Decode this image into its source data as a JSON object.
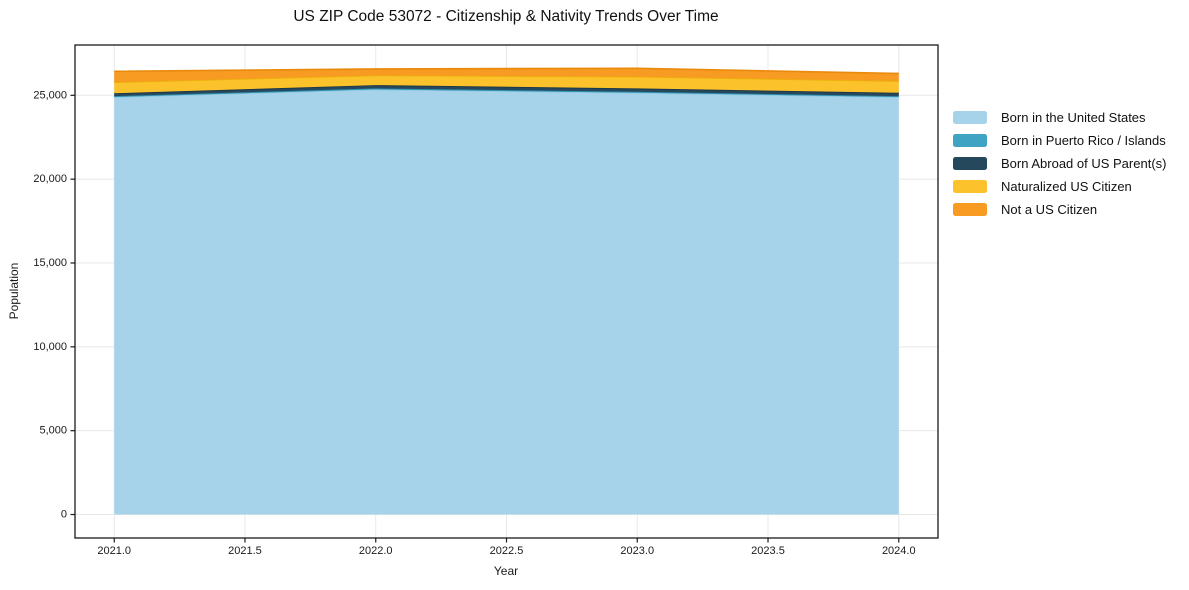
{
  "page": {
    "title": "US ZIP Code 53072 - Citizenship & Nativity Trends Over Time"
  },
  "chart_data": {
    "type": "area",
    "stacked": true,
    "title": "US ZIP Code 53072 - Citizenship & Nativity Trends Over Time",
    "xlabel": "Year",
    "ylabel": "Population",
    "x": [
      2021,
      2022,
      2023,
      2024
    ],
    "series": [
      {
        "name": "Born in the United States",
        "values": [
          24900,
          25350,
          25150,
          24900
        ],
        "fill": "#a6d3ea",
        "edge": "#8fc7e0"
      },
      {
        "name": "Born in Puerto Rico / Islands",
        "values": [
          50,
          60,
          60,
          50
        ],
        "fill": "#3fa4c3",
        "edge": "#2f8fae"
      },
      {
        "name": "Born Abroad of US Parent(s)",
        "values": [
          170,
          200,
          200,
          200
        ],
        "fill": "#26485c",
        "edge": "#1c3748"
      },
      {
        "name": "Naturalized US Citizen",
        "values": [
          660,
          580,
          700,
          700
        ],
        "fill": "#fcc22c",
        "edge": "#edb00a"
      },
      {
        "name": "Not a US Citizen",
        "values": [
          650,
          380,
          500,
          450
        ],
        "fill": "#f79b23",
        "edge": "#ea8a0d"
      }
    ],
    "totals": [
      26430,
      26570,
      26610,
      26300
    ],
    "xlim": [
      2020.85,
      2024.15
    ],
    "ylim": [
      -1400,
      28000
    ],
    "xticks": {
      "values": [
        2021,
        2021.5,
        2022,
        2022.5,
        2023,
        2023.5,
        2024
      ],
      "labels": [
        "2021.0",
        "2021.5",
        "2022.0",
        "2022.5",
        "2023.0",
        "2023.5",
        "2024.0"
      ]
    },
    "yticks": {
      "values": [
        0,
        5000,
        10000,
        15000,
        20000,
        25000
      ],
      "labels": [
        "0",
        "5,000",
        "10,000",
        "15,000",
        "20,000",
        "25,000"
      ]
    },
    "grid": true,
    "grid_color": "#e8e8e8",
    "spine_color": "#1a1a1a",
    "background": "#ffffff",
    "legend": {
      "position": "right-outside",
      "frame": false
    }
  }
}
